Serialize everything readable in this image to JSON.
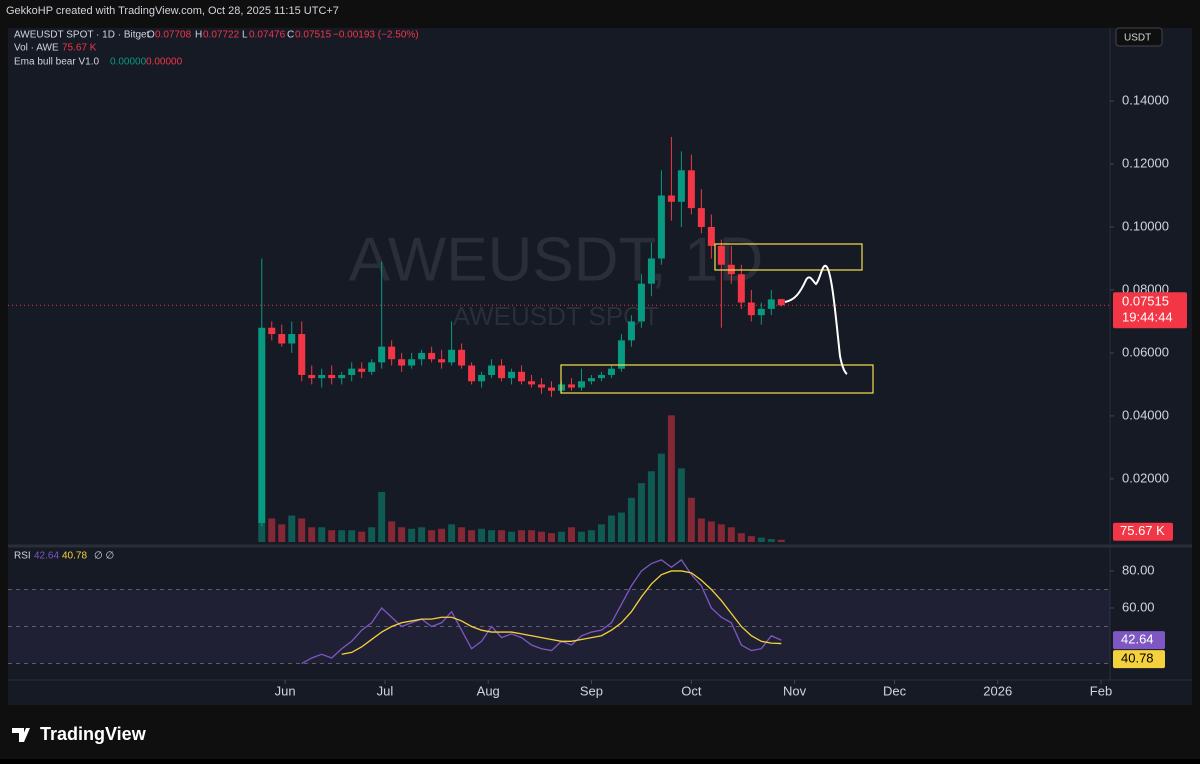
{
  "header": {
    "credit": "GekkoHP created with TradingView.com, Oct 28, 2025 11:15 UTC+7"
  },
  "legend": {
    "symbol": "AWEUSDT SPOT · 1D · Bitget",
    "o_key": "O",
    "open": "0.07708",
    "h_key": "H",
    "high": "0.07722",
    "l_key": "L",
    "low": "0.07476",
    "c_key": "C",
    "close": "0.07515",
    "change": "−0.00193 (−2.50%)",
    "vol_name": "Vol · AWE",
    "vol_value": "75.67 K",
    "ema_name": "Ema bull bear V1.0",
    "ema_bull": "0.00000",
    "ema_bear": "0.00000"
  },
  "currency": "USDT",
  "watermark": {
    "main": "AWEUSDT, 1D",
    "sub": "AWEUSDT SPOT"
  },
  "rsi_legend": {
    "name": "RSI",
    "rsi": "42.64",
    "ma": "40.78",
    "extra": "∅ ∅"
  },
  "footer": {
    "brand": "TradingView"
  },
  "chart_data": {
    "type": "candlestick",
    "up_color": "#089981",
    "down_color": "#f23645",
    "grid": false,
    "xlim": [
      -82.6,
      247.7
    ],
    "xticks": [
      {
        "value": 0,
        "label": "Jun"
      },
      {
        "value": 30,
        "label": "Jul"
      },
      {
        "value": 61,
        "label": "Aug"
      },
      {
        "value": 92,
        "label": "Sep"
      },
      {
        "value": 122,
        "label": "Oct"
      },
      {
        "value": 153,
        "label": "Nov"
      },
      {
        "value": 183,
        "label": "Dec"
      },
      {
        "value": 214,
        "label": "2026"
      },
      {
        "value": 245,
        "label": "Feb"
      }
    ],
    "ylim": [
      -0.001,
      0.1632
    ],
    "yticks": [
      {
        "value": 0.02,
        "label": "0.02000"
      },
      {
        "value": 0.04,
        "label": "0.04000"
      },
      {
        "value": 0.06,
        "label": "0.06000"
      },
      {
        "value": 0.08,
        "label": "0.08000"
      },
      {
        "value": 0.1,
        "label": "0.10000"
      },
      {
        "value": 0.12,
        "label": "0.12000"
      },
      {
        "value": 0.14,
        "label": "0.14000"
      }
    ],
    "x": [
      -7,
      -4,
      -1,
      2,
      5,
      8,
      11,
      14,
      17,
      20,
      23,
      26,
      29,
      32,
      35,
      38,
      41,
      44,
      47,
      50,
      53,
      56,
      59,
      62,
      65,
      68,
      71,
      74,
      77,
      80,
      83,
      86,
      89,
      92,
      95,
      98,
      101,
      104,
      107,
      110,
      113,
      116,
      119,
      122,
      125,
      128,
      131,
      134,
      137,
      140,
      143,
      146,
      149
    ],
    "open": [
      0.006,
      0.068,
      0.066,
      0.063,
      0.066,
      0.053,
      0.052,
      0.053,
      0.052,
      0.053,
      0.055,
      0.054,
      0.057,
      0.062,
      0.058,
      0.056,
      0.058,
      0.06,
      0.058,
      0.057,
      0.061,
      0.056,
      0.051,
      0.053,
      0.056,
      0.052,
      0.054,
      0.051,
      0.05,
      0.049,
      0.048,
      0.05,
      0.049,
      0.051,
      0.052,
      0.053,
      0.055,
      0.064,
      0.07,
      0.082,
      0.09,
      0.11,
      0.108,
      0.118,
      0.106,
      0.1,
      0.094,
      0.088,
      0.085,
      0.076,
      0.072,
      0.074,
      0.07708
    ],
    "high": [
      0.09,
      0.07,
      0.069,
      0.07,
      0.07,
      0.056,
      0.055,
      0.056,
      0.054,
      0.057,
      0.057,
      0.058,
      0.089,
      0.064,
      0.06,
      0.06,
      0.061,
      0.062,
      0.061,
      0.07,
      0.063,
      0.057,
      0.054,
      0.058,
      0.058,
      0.055,
      0.056,
      0.053,
      0.052,
      0.051,
      0.051,
      0.052,
      0.055,
      0.053,
      0.054,
      0.056,
      0.066,
      0.072,
      0.085,
      0.095,
      0.118,
      0.1286,
      0.124,
      0.123,
      0.112,
      0.104,
      0.096,
      0.094,
      0.088,
      0.08,
      0.076,
      0.08,
      0.07722
    ],
    "low": [
      0.005,
      0.064,
      0.062,
      0.06,
      0.051,
      0.05,
      0.049,
      0.05,
      0.05,
      0.051,
      0.052,
      0.053,
      0.055,
      0.056,
      0.054,
      0.055,
      0.056,
      0.057,
      0.055,
      0.056,
      0.055,
      0.05,
      0.049,
      0.052,
      0.051,
      0.05,
      0.05,
      0.049,
      0.047,
      0.046,
      0.047,
      0.048,
      0.048,
      0.05,
      0.051,
      0.052,
      0.054,
      0.062,
      0.068,
      0.078,
      0.088,
      0.102,
      0.1,
      0.104,
      0.098,
      0.09,
      0.068,
      0.082,
      0.074,
      0.07,
      0.069,
      0.072,
      0.07476
    ],
    "close": [
      0.068,
      0.066,
      0.063,
      0.066,
      0.053,
      0.052,
      0.053,
      0.052,
      0.053,
      0.055,
      0.054,
      0.057,
      0.062,
      0.058,
      0.056,
      0.058,
      0.06,
      0.058,
      0.057,
      0.061,
      0.056,
      0.051,
      0.053,
      0.056,
      0.052,
      0.054,
      0.051,
      0.05,
      0.049,
      0.048,
      0.05,
      0.049,
      0.051,
      0.052,
      0.053,
      0.055,
      0.064,
      0.07,
      0.082,
      0.09,
      0.11,
      0.108,
      0.118,
      0.106,
      0.1,
      0.094,
      0.088,
      0.085,
      0.076,
      0.072,
      0.074,
      0.077,
      0.07515
    ],
    "last_price": 0.07515,
    "countdown": "19:44:44",
    "vlim": [
      0,
      5500
    ],
    "volume": [
      700,
      800,
      600,
      900,
      800,
      500,
      500,
      400,
      400,
      400,
      350,
      500,
      1700,
      700,
      500,
      450,
      500,
      400,
      450,
      600,
      500,
      400,
      450,
      400,
      400,
      350,
      400,
      400,
      350,
      300,
      350,
      500,
      350,
      400,
      600,
      900,
      1000,
      1500,
      2000,
      2400,
      3000,
      4300,
      2500,
      1500,
      800,
      700,
      600,
      500,
      300,
      200,
      150,
      100,
      75.67
    ],
    "last_volume": {
      "value": 75.67,
      "label": "75.67 K"
    },
    "rsi_ylim": [
      21.1,
      92.4
    ],
    "rsi_yticks": [
      {
        "value": 60,
        "label": "60.00"
      },
      {
        "value": 80,
        "label": "80.00"
      }
    ],
    "rsi_bands": [
      70,
      50,
      30
    ],
    "rsi_color": "#7e57c2",
    "rsi_ma_color": "#f5d13d",
    "rsi": [
      null,
      null,
      null,
      null,
      30,
      33,
      35,
      33,
      38,
      42,
      48,
      52,
      60,
      55,
      50,
      52,
      54,
      50,
      52,
      58,
      48,
      38,
      42,
      50,
      44,
      46,
      44,
      40,
      38,
      37,
      42,
      40,
      45,
      47,
      48,
      52,
      62,
      72,
      80,
      84,
      86,
      82,
      86,
      78,
      72,
      60,
      55,
      52,
      40,
      37,
      38,
      45,
      42.64
    ],
    "rsi_ma": [
      null,
      null,
      null,
      null,
      null,
      null,
      null,
      null,
      35,
      36,
      39,
      43,
      47,
      50,
      52,
      53,
      54,
      54,
      55,
      55,
      53,
      50,
      48,
      47,
      47,
      47,
      46,
      45,
      44,
      43,
      42,
      42,
      43,
      44,
      45,
      48,
      52,
      58,
      66,
      73,
      78,
      80,
      80,
      79,
      75,
      70,
      64,
      57,
      50,
      45,
      42,
      41,
      40.78
    ],
    "last_rsi": 42.64,
    "last_rsi_ma": 40.78
  }
}
